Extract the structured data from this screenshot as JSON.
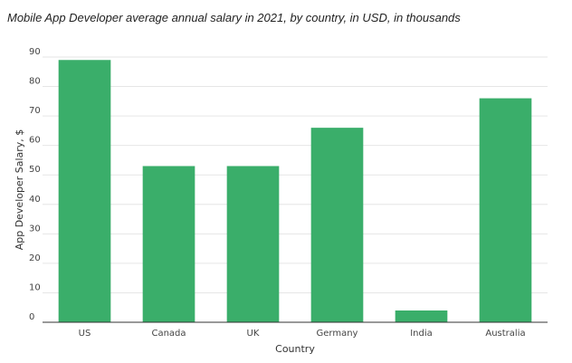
{
  "chart_data": {
    "type": "bar",
    "title": "Mobile App Developer average annual salary in 2021, by country, in USD, in thousands",
    "xlabel": "Country",
    "ylabel": "App Developer Salary, $",
    "categories": [
      "US",
      "Canada",
      "UK",
      "Germany",
      "India",
      "Australia"
    ],
    "values": [
      89,
      53,
      53,
      66,
      4,
      76
    ],
    "ylim": [
      0,
      90
    ],
    "yticks": [
      0,
      10,
      20,
      30,
      40,
      50,
      60,
      70,
      80,
      90
    ],
    "grid": true,
    "bar_color": "#3aae6a"
  }
}
